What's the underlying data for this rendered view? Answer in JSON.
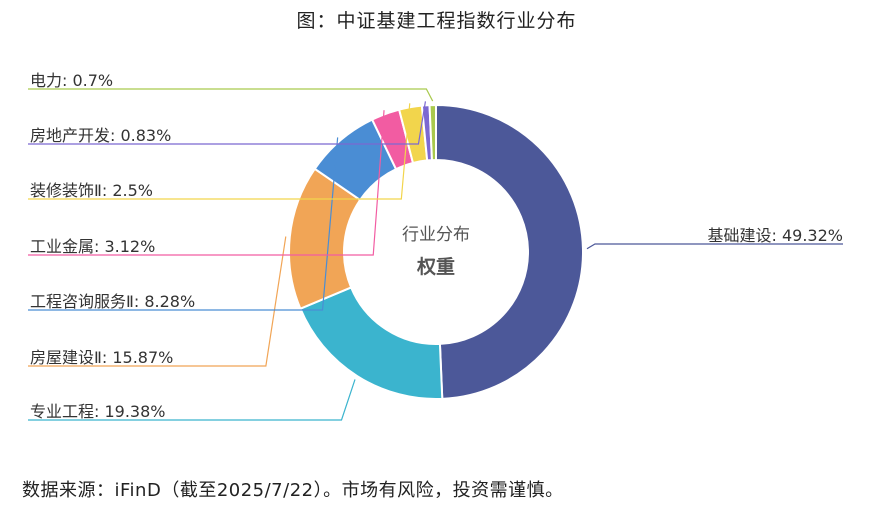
{
  "title": "图：中证基建工程指数行业分布",
  "source_note": "数据来源：iFinD（截至2025/7/22）。市场有风险，投资需谨慎。",
  "chart_data": {
    "type": "pie",
    "title": "图：中证基建工程指数行业分布",
    "center_label": "行业分布",
    "center_sublabel": "权重",
    "unit": "%",
    "slices": [
      {
        "name": "基础建设",
        "value": 49.32,
        "color": "#4C5899"
      },
      {
        "name": "专业工程",
        "value": 19.38,
        "color": "#3BB4CE"
      },
      {
        "name": "房屋建设Ⅱ",
        "value": 15.87,
        "color": "#F1A556"
      },
      {
        "name": "工程咨询服务Ⅱ",
        "value": 8.28,
        "color": "#4A8DD4"
      },
      {
        "name": "工业金属",
        "value": 3.12,
        "color": "#F25CA2"
      },
      {
        "name": "装修装饰Ⅱ",
        "value": 2.5,
        "color": "#F2D54C"
      },
      {
        "name": "房地产开发",
        "value": 0.83,
        "color": "#7B68D1"
      },
      {
        "name": "电力",
        "value": 0.7,
        "color": "#A9C94E"
      }
    ]
  }
}
